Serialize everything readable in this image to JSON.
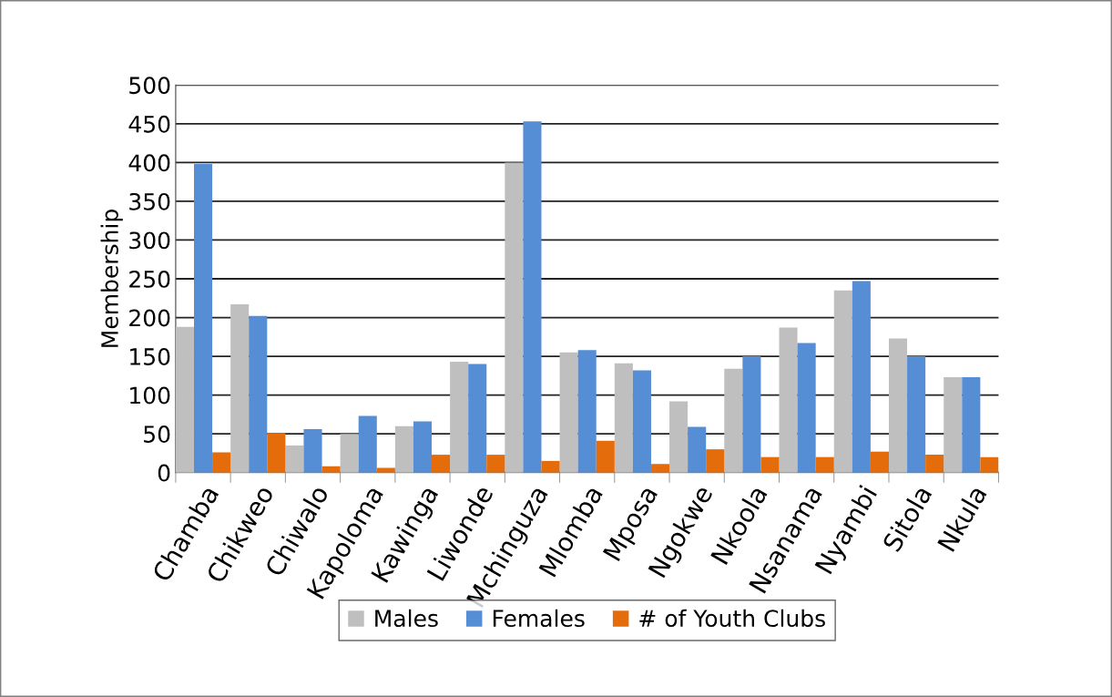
{
  "chart_data": {
    "type": "bar",
    "ylabel": "Membership",
    "categories": [
      "Chamba",
      "Chikweo",
      "Chiwalo",
      "Kapoloma",
      "Kawinga",
      "Liwonde",
      "Mchinguza",
      "Mlomba",
      "Mposa",
      "Ngokwe",
      "Nkoola",
      "Nsanama",
      "Nyambi",
      "Sitola",
      "Nkula"
    ],
    "series": [
      {
        "name": "Males",
        "color": "#bfbfbf",
        "values": [
          188,
          217,
          35,
          50,
          60,
          143,
          400,
          155,
          141,
          92,
          134,
          187,
          235,
          173,
          123
        ]
      },
      {
        "name": "Females",
        "color": "#558ed5",
        "values": [
          398,
          202,
          56,
          73,
          66,
          140,
          453,
          158,
          132,
          59,
          150,
          167,
          247,
          150,
          123
        ]
      },
      {
        "name": "# of Youth Clubs",
        "color": "#e46c0a",
        "values": [
          26,
          51,
          8,
          6,
          23,
          23,
          15,
          41,
          11,
          30,
          20,
          20,
          27,
          23,
          20
        ]
      }
    ],
    "ylim": [
      0,
      500
    ],
    "yticks": [
      0,
      50,
      100,
      150,
      200,
      250,
      300,
      350,
      400,
      450,
      500
    ],
    "grid": "y",
    "legend": "bottom"
  }
}
